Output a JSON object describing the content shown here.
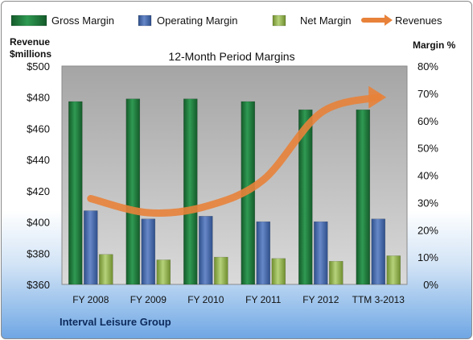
{
  "chart_data": {
    "type": "bar",
    "title": "12-Month Period Margins",
    "categories": [
      "FY 2008",
      "FY 2009",
      "FY 2010",
      "FY 2011",
      "FY 2012",
      "TTM 3-2013"
    ],
    "y_left": {
      "label_line1": "Revenue",
      "label_line2": "$millions",
      "range": [
        360,
        500
      ],
      "ticks": [
        "$360",
        "$380",
        "$400",
        "$420",
        "$440",
        "$460",
        "$480",
        "$500"
      ]
    },
    "y_right": {
      "label": "Margin %",
      "range": [
        0,
        80
      ],
      "ticks": [
        "0%",
        "10%",
        "20%",
        "30%",
        "40%",
        "50%",
        "60%",
        "70%",
        "80%"
      ]
    },
    "series": [
      {
        "name": "Gross Margin",
        "axis": "right",
        "color": "#217a3c",
        "values": [
          67,
          68,
          68,
          67,
          64,
          64
        ]
      },
      {
        "name": "Operating Margin",
        "axis": "right",
        "color": "#4a6fb0",
        "values": [
          27,
          24,
          25,
          23,
          23,
          24
        ]
      },
      {
        "name": "Net Margin",
        "axis": "right",
        "color": "#9bbb59",
        "values": [
          11,
          9,
          10,
          9.5,
          8.5,
          10.5
        ]
      },
      {
        "name": "Revenues",
        "axis": "left",
        "type": "line",
        "color": "#e8823a",
        "values": [
          415,
          406,
          410,
          427,
          470,
          480
        ]
      }
    ],
    "legend_position": "top",
    "grid": false,
    "footer": "Interval Leisure Group"
  }
}
